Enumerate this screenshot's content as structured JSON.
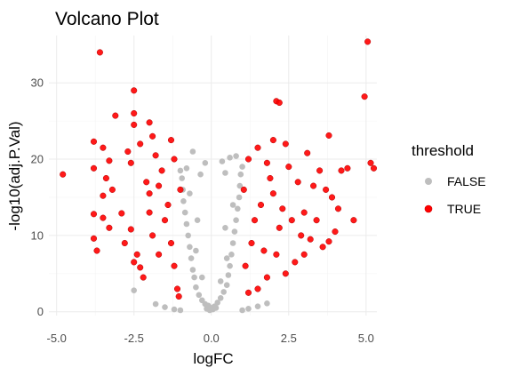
{
  "chart_data": {
    "type": "scatter",
    "title": "Volcano Plot",
    "xlabel": "logFC",
    "ylabel": "-log10(adj.P.Val)",
    "xlim": [
      -5.25,
      5.35
    ],
    "ylim": [
      -0.5,
      36.2
    ],
    "xticks": [
      -5.0,
      -2.5,
      0.0,
      2.5,
      5.0
    ],
    "xtick_labels": [
      "-5.0",
      "-2.5",
      "0.0",
      "2.5",
      "5.0"
    ],
    "yticks": [
      0,
      10,
      20,
      30
    ],
    "ytick_labels": [
      "0",
      "10",
      "20",
      "30"
    ],
    "grid": true,
    "legend": {
      "title": "threshold",
      "position": "right",
      "entries": [
        {
          "label": "FALSE",
          "color": "#bebebe"
        },
        {
          "label": "TRUE",
          "color": "#ff0000"
        }
      ]
    },
    "series": [
      {
        "name": "FALSE",
        "color": "#bebebe",
        "points": [
          [
            -0.05,
            0.2
          ],
          [
            0.05,
            0.3
          ],
          [
            0.0,
            0.5
          ],
          [
            -0.1,
            0.8
          ],
          [
            0.1,
            0.7
          ],
          [
            -0.2,
            1.0
          ],
          [
            0.2,
            1.2
          ],
          [
            -0.3,
            1.5
          ],
          [
            0.3,
            1.8
          ],
          [
            -0.15,
            0.4
          ],
          [
            0.15,
            0.5
          ],
          [
            -0.4,
            2.2
          ],
          [
            0.4,
            2.6
          ],
          [
            -0.5,
            3.2
          ],
          [
            0.5,
            3.5
          ],
          [
            -0.55,
            4.5
          ],
          [
            0.55,
            4.8
          ],
          [
            -0.6,
            5.5
          ],
          [
            0.6,
            6.0
          ],
          [
            -0.65,
            7.0
          ],
          [
            0.65,
            7.5
          ],
          [
            -0.7,
            8.5
          ],
          [
            0.7,
            9.0
          ],
          [
            -0.75,
            10.0
          ],
          [
            0.75,
            10.5
          ],
          [
            -0.8,
            11.5
          ],
          [
            0.8,
            12.0
          ],
          [
            -0.85,
            13.0
          ],
          [
            0.85,
            13.5
          ],
          [
            -0.9,
            14.5
          ],
          [
            0.9,
            15.0
          ],
          [
            -0.92,
            16.0
          ],
          [
            0.92,
            16.5
          ],
          [
            -0.95,
            17.5
          ],
          [
            0.95,
            18.0
          ],
          [
            -1.0,
            18.5
          ],
          [
            1.0,
            19.0
          ],
          [
            -0.2,
            19.5
          ],
          [
            0.35,
            19.7
          ],
          [
            0.45,
            18.2
          ],
          [
            -0.35,
            18.0
          ],
          [
            -0.8,
            18.8
          ],
          [
            0.8,
            20.4
          ],
          [
            0.6,
            20.2
          ],
          [
            -0.6,
            21.0
          ],
          [
            -1.8,
            1.0
          ],
          [
            -1.5,
            0.6
          ],
          [
            -1.2,
            0.3
          ],
          [
            1.2,
            0.4
          ],
          [
            1.5,
            0.7
          ],
          [
            1.8,
            1.1
          ],
          [
            -2.5,
            2.8
          ],
          [
            -1.0,
            0.2
          ],
          [
            1.0,
            0.2
          ],
          [
            -0.45,
            12.0
          ],
          [
            0.45,
            11.0
          ],
          [
            -0.7,
            15.5
          ],
          [
            0.7,
            14.0
          ],
          [
            -0.5,
            8.0
          ],
          [
            0.5,
            7.0
          ],
          [
            -0.3,
            4.5
          ],
          [
            0.3,
            4.0
          ]
        ]
      },
      {
        "name": "TRUE",
        "color": "#ff0000",
        "points": [
          [
            -4.8,
            18.0
          ],
          [
            -3.6,
            34.0
          ],
          [
            -2.5,
            29.0
          ],
          [
            -3.1,
            25.7
          ],
          [
            -2.5,
            26.0
          ],
          [
            -2.0,
            24.8
          ],
          [
            -2.5,
            24.5
          ],
          [
            -1.9,
            23.0
          ],
          [
            -3.8,
            22.3
          ],
          [
            -3.3,
            19.8
          ],
          [
            -3.8,
            18.8
          ],
          [
            -3.5,
            21.5
          ],
          [
            -3.4,
            17.5
          ],
          [
            -3.2,
            16.0
          ],
          [
            -3.5,
            15.2
          ],
          [
            -3.8,
            12.8
          ],
          [
            -3.5,
            12.3
          ],
          [
            -2.9,
            12.9
          ],
          [
            -3.3,
            11.0
          ],
          [
            -3.8,
            9.6
          ],
          [
            -3.7,
            8.0
          ],
          [
            -2.6,
            10.8
          ],
          [
            -2.8,
            9.0
          ],
          [
            -2.5,
            6.5
          ],
          [
            -2.3,
            5.8
          ],
          [
            -2.2,
            4.5
          ],
          [
            -2.4,
            7.5
          ],
          [
            -2.0,
            15.5
          ],
          [
            -1.8,
            20.5
          ],
          [
            -1.6,
            18.5
          ],
          [
            -1.5,
            12.0
          ],
          [
            -1.3,
            9.0
          ],
          [
            -1.2,
            6.0
          ],
          [
            -1.1,
            3.0
          ],
          [
            -1.05,
            2.0
          ],
          [
            -1.4,
            14.0
          ],
          [
            -1.7,
            16.5
          ],
          [
            -2.1,
            17.0
          ],
          [
            -2.6,
            19.5
          ],
          [
            -2.7,
            21.0
          ],
          [
            -1.2,
            20.0
          ],
          [
            -1.0,
            16.0
          ],
          [
            -1.9,
            10.0
          ],
          [
            -1.7,
            7.5
          ],
          [
            -2.0,
            13.0
          ],
          [
            1.2,
            20.0
          ],
          [
            1.5,
            21.5
          ],
          [
            1.8,
            19.5
          ],
          [
            2.1,
            27.6
          ],
          [
            2.2,
            27.4
          ],
          [
            2.4,
            22.0
          ],
          [
            2.0,
            22.5
          ],
          [
            3.1,
            20.8
          ],
          [
            3.8,
            23.1
          ],
          [
            3.3,
            16.5
          ],
          [
            3.5,
            18.5
          ],
          [
            3.7,
            16.0
          ],
          [
            3.9,
            15.0
          ],
          [
            4.2,
            18.5
          ],
          [
            4.4,
            18.8
          ],
          [
            4.6,
            12.0
          ],
          [
            4.0,
            10.5
          ],
          [
            3.8,
            9.2
          ],
          [
            3.6,
            8.5
          ],
          [
            3.2,
            9.5
          ],
          [
            2.9,
            10.0
          ],
          [
            2.7,
            6.5
          ],
          [
            2.4,
            5.0
          ],
          [
            2.1,
            7.5
          ],
          [
            1.8,
            4.5
          ],
          [
            1.5,
            3.0
          ],
          [
            1.2,
            2.5
          ],
          [
            1.1,
            6.0
          ],
          [
            1.3,
            9.0
          ],
          [
            1.4,
            12.0
          ],
          [
            1.6,
            14.0
          ],
          [
            2.0,
            15.5
          ],
          [
            2.3,
            13.5
          ],
          [
            2.6,
            12.0
          ],
          [
            3.0,
            13.0
          ],
          [
            3.4,
            12.0
          ],
          [
            2.5,
            19.0
          ],
          [
            2.8,
            17.0
          ],
          [
            1.9,
            17.5
          ],
          [
            5.05,
            35.4
          ],
          [
            4.95,
            28.2
          ],
          [
            5.15,
            19.5
          ],
          [
            5.25,
            18.8
          ],
          [
            1.05,
            16.0
          ],
          [
            1.7,
            8.0
          ],
          [
            2.2,
            11.0
          ],
          [
            3.0,
            7.5
          ],
          [
            4.1,
            13.5
          ],
          [
            -2.3,
            22.0
          ],
          [
            -1.3,
            22.5
          ]
        ]
      }
    ]
  }
}
